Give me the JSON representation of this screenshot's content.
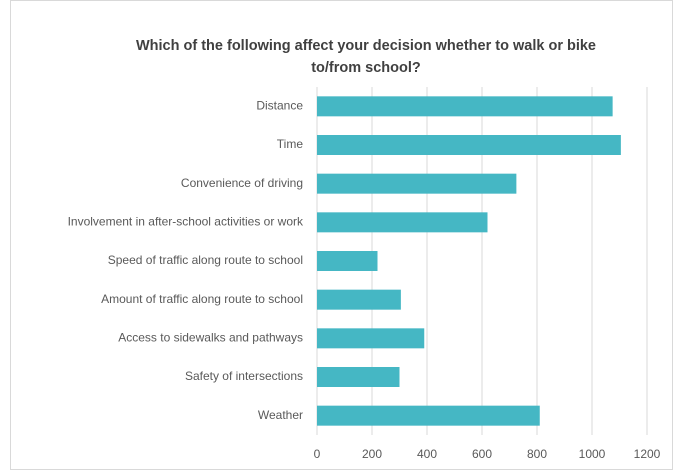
{
  "chart_data": {
    "type": "barh",
    "title": [
      "Which of the following affect your decision whether to walk or bike",
      "to/from school?"
    ],
    "categories": [
      "Distance",
      "Time",
      "Convenience of driving",
      "Involvement in after-school activities or work",
      "Speed of traffic along route to school",
      "Amount of traffic along route to school",
      "Access to sidewalks and pathways",
      "Safety of intersections",
      "Weather"
    ],
    "values": [
      1075,
      1105,
      725,
      620,
      220,
      305,
      390,
      300,
      810
    ],
    "color": "#45b7c4",
    "xlim": [
      0,
      1200
    ],
    "xticks": [
      0,
      200,
      400,
      600,
      800,
      1000,
      1200
    ],
    "grid": true
  }
}
